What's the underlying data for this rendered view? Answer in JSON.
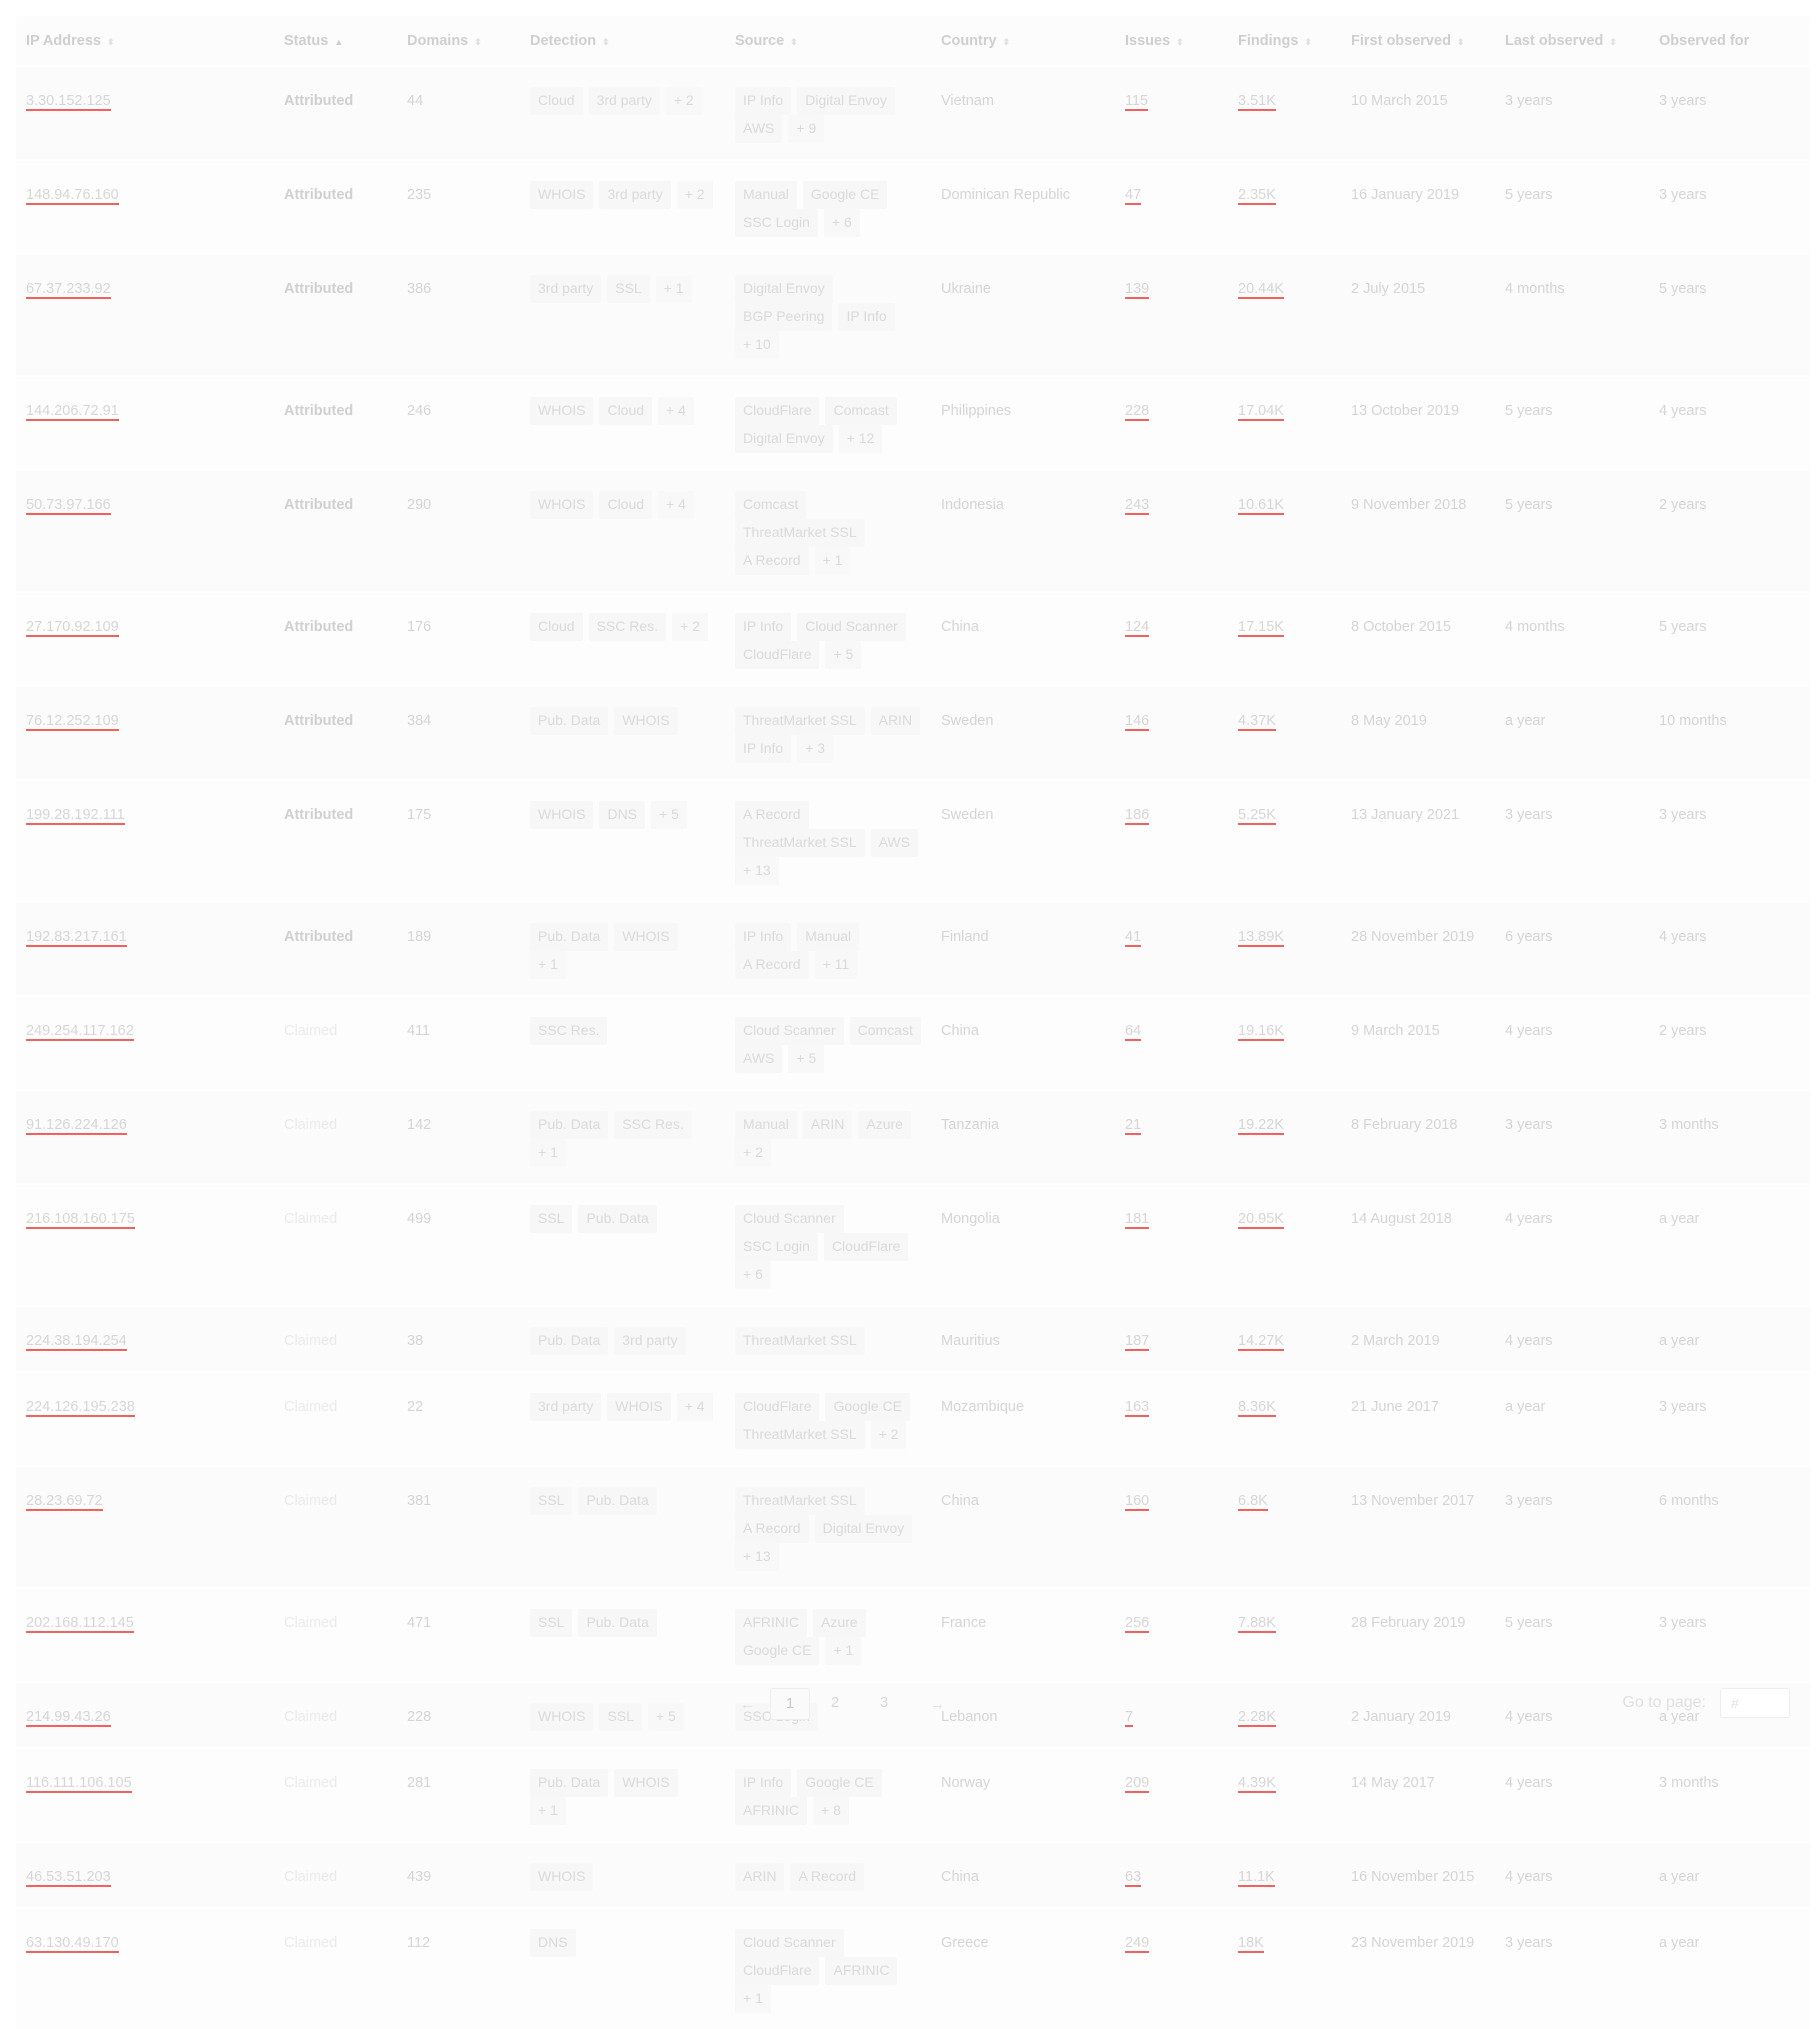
{
  "table": {
    "columns": [
      {
        "label": "IP Address",
        "sort": "⬍",
        "active": false
      },
      {
        "label": "Status",
        "sort": "▲",
        "active": true
      },
      {
        "label": "Domains",
        "sort": "⬍",
        "active": false
      },
      {
        "label": "Detection",
        "sort": "⬍",
        "active": false
      },
      {
        "label": "Source",
        "sort": "⬍",
        "active": false
      },
      {
        "label": "Country",
        "sort": "⬍",
        "active": false
      },
      {
        "label": "Issues",
        "sort": "⬍",
        "active": false
      },
      {
        "label": "Findings",
        "sort": "⬍",
        "active": false
      },
      {
        "label": "First observed",
        "sort": "⬍",
        "active": false
      },
      {
        "label": "Last observed",
        "sort": "⬍",
        "active": false
      },
      {
        "label": "Observed for",
        "sort": "",
        "active": false
      }
    ],
    "rows": [
      {
        "ip": "3.30.152.125",
        "status": "Attributed",
        "domains": "44",
        "detection": [
          "Cloud",
          "3rd party",
          "+ 2"
        ],
        "source": [
          "IP Info",
          "Digital Envoy",
          "AWS",
          "+ 9"
        ],
        "country": "Vietnam",
        "issues": "115",
        "findings": "3.51K",
        "first": "10 March 2015",
        "last": "3 years",
        "observed": "3 years"
      },
      {
        "ip": "148.94.76.160",
        "status": "Attributed",
        "domains": "235",
        "detection": [
          "WHOIS",
          "3rd party",
          "+ 2"
        ],
        "source": [
          "Manual",
          "Google CE",
          "SSC Login",
          "+ 6"
        ],
        "country": "Dominican Republic",
        "issues": "47",
        "findings": "2.35K",
        "first": "16 January 2019",
        "last": "5 years",
        "observed": "3 years"
      },
      {
        "ip": "67.37.233.92",
        "status": "Attributed",
        "domains": "386",
        "detection": [
          "3rd party",
          "SSL",
          "+ 1"
        ],
        "source": [
          "Digital Envoy",
          "BGP Peering",
          "IP Info",
          "+ 10"
        ],
        "country": "Ukraine",
        "issues": "139",
        "findings": "20.44K",
        "first": "2 July 2015",
        "last": "4 months",
        "observed": "5 years"
      },
      {
        "ip": "144.206.72.91",
        "status": "Attributed",
        "domains": "246",
        "detection": [
          "WHOIS",
          "Cloud",
          "+ 4"
        ],
        "source": [
          "CloudFlare",
          "Comcast",
          "Digital Envoy",
          "+ 12"
        ],
        "country": "Philippines",
        "issues": "228",
        "findings": "17.04K",
        "first": "13 October 2019",
        "last": "5 years",
        "observed": "4 years"
      },
      {
        "ip": "50.73.97.166",
        "status": "Attributed",
        "domains": "290",
        "detection": [
          "WHOIS",
          "Cloud",
          "+ 4"
        ],
        "source": [
          "Comcast",
          "ThreatMarket SSL",
          "A Record",
          "+ 1"
        ],
        "country": "Indonesia",
        "issues": "243",
        "findings": "10.61K",
        "first": "9 November 2018",
        "last": "5 years",
        "observed": "2 years"
      },
      {
        "ip": "27.170.92.109",
        "status": "Attributed",
        "domains": "176",
        "detection": [
          "Cloud",
          "SSC Res.",
          "+ 2"
        ],
        "source": [
          "IP Info",
          "Cloud Scanner",
          "CloudFlare",
          "+ 5"
        ],
        "country": "China",
        "issues": "124",
        "findings": "17.15K",
        "first": "8 October 2015",
        "last": "4 months",
        "observed": "5 years"
      },
      {
        "ip": "76.12.252.109",
        "status": "Attributed",
        "domains": "384",
        "detection": [
          "Pub. Data",
          "WHOIS"
        ],
        "source": [
          "ThreatMarket SSL",
          "ARIN",
          "IP Info",
          "+ 3"
        ],
        "country": "Sweden",
        "issues": "146",
        "findings": "4.37K",
        "first": "8 May 2019",
        "last": "a year",
        "observed": "10 months"
      },
      {
        "ip": "199.28.192.111",
        "status": "Attributed",
        "domains": "175",
        "detection": [
          "WHOIS",
          "DNS",
          "+ 5"
        ],
        "source": [
          "A Record",
          "ThreatMarket SSL",
          "AWS",
          "+ 13"
        ],
        "country": "Sweden",
        "issues": "186",
        "findings": "5.25K",
        "first": "13 January 2021",
        "last": "3 years",
        "observed": "3 years"
      },
      {
        "ip": "192.83.217.161",
        "status": "Attributed",
        "domains": "189",
        "detection": [
          "Pub. Data",
          "WHOIS",
          "+ 1"
        ],
        "source": [
          "IP Info",
          "Manual",
          "A Record",
          "+ 11"
        ],
        "country": "Finland",
        "issues": "41",
        "findings": "13.89K",
        "first": "28 November 2019",
        "last": "6 years",
        "observed": "4 years"
      },
      {
        "ip": "249.254.117.162",
        "status": "Claimed",
        "domains": "411",
        "detection": [
          "SSC Res."
        ],
        "source": [
          "Cloud Scanner",
          "Comcast",
          "AWS",
          "+ 5"
        ],
        "country": "China",
        "issues": "64",
        "findings": "19.16K",
        "first": "9 March 2015",
        "last": "4 years",
        "observed": "2 years"
      },
      {
        "ip": "91.126.224.126",
        "status": "Claimed",
        "domains": "142",
        "detection": [
          "Pub. Data",
          "SSC Res.",
          "+ 1"
        ],
        "source": [
          "Manual",
          "ARIN",
          "Azure",
          "+ 2"
        ],
        "country": "Tanzania",
        "issues": "21",
        "findings": "19.22K",
        "first": "8 February 2018",
        "last": "3 years",
        "observed": "3 months"
      },
      {
        "ip": "216.108.160.175",
        "status": "Claimed",
        "domains": "499",
        "detection": [
          "SSL",
          "Pub. Data"
        ],
        "source": [
          "Cloud Scanner",
          "SSC Login",
          "CloudFlare",
          "+ 6"
        ],
        "country": "Mongolia",
        "issues": "181",
        "findings": "20.95K",
        "first": "14 August 2018",
        "last": "4 years",
        "observed": "a year"
      },
      {
        "ip": "224.38.194.254",
        "status": "Claimed",
        "domains": "38",
        "detection": [
          "Pub. Data",
          "3rd party"
        ],
        "source": [
          "ThreatMarket SSL"
        ],
        "country": "Mauritius",
        "issues": "187",
        "findings": "14.27K",
        "first": "2 March 2019",
        "last": "4 years",
        "observed": "a year"
      },
      {
        "ip": "224.126.195.238",
        "status": "Claimed",
        "domains": "22",
        "detection": [
          "3rd party",
          "WHOIS",
          "+ 4"
        ],
        "source": [
          "CloudFlare",
          "Google CE",
          "ThreatMarket SSL",
          "+ 2"
        ],
        "country": "Mozambique",
        "issues": "163",
        "findings": "8.36K",
        "first": "21 June 2017",
        "last": "a year",
        "observed": "3 years"
      },
      {
        "ip": "28.23.69.72",
        "status": "Claimed",
        "domains": "381",
        "detection": [
          "SSL",
          "Pub. Data"
        ],
        "source": [
          "ThreatMarket SSL",
          "A Record",
          "Digital Envoy",
          "+ 13"
        ],
        "country": "China",
        "issues": "160",
        "findings": "6.8K",
        "first": "13 November 2017",
        "last": "3 years",
        "observed": "6 months"
      },
      {
        "ip": "202.168.112.145",
        "status": "Claimed",
        "domains": "471",
        "detection": [
          "SSL",
          "Pub. Data"
        ],
        "source": [
          "AFRINIC",
          "Azure",
          "Google CE",
          "+ 1"
        ],
        "country": "France",
        "issues": "256",
        "findings": "7.88K",
        "first": "28 February 2019",
        "last": "5 years",
        "observed": "3 years"
      },
      {
        "ip": "214.99.43.26",
        "status": "Claimed",
        "domains": "228",
        "detection": [
          "WHOIS",
          "SSL",
          "+ 5"
        ],
        "source": [
          "SSC Login"
        ],
        "country": "Lebanon",
        "issues": "7",
        "findings": "2.28K",
        "first": "2 January 2019",
        "last": "4 years",
        "observed": "a year"
      },
      {
        "ip": "116.111.106.105",
        "status": "Claimed",
        "domains": "281",
        "detection": [
          "Pub. Data",
          "WHOIS",
          "+ 1"
        ],
        "source": [
          "IP Info",
          "Google CE",
          "AFRINIC",
          "+ 8"
        ],
        "country": "Norway",
        "issues": "209",
        "findings": "4.39K",
        "first": "14 May 2017",
        "last": "4 years",
        "observed": "3 months"
      },
      {
        "ip": "46.53.51.203",
        "status": "Claimed",
        "domains": "439",
        "detection": [
          "WHOIS"
        ],
        "source": [
          "ARIN",
          "A Record"
        ],
        "country": "China",
        "issues": "63",
        "findings": "11.1K",
        "first": "16 November 2015",
        "last": "4 years",
        "observed": "a year"
      },
      {
        "ip": "63.130.49.170",
        "status": "Claimed",
        "domains": "112",
        "detection": [
          "DNS"
        ],
        "source": [
          "Cloud Scanner",
          "CloudFlare",
          "AFRINIC",
          "+ 1"
        ],
        "country": "Greece",
        "issues": "249",
        "findings": "18K",
        "first": "23 November 2019",
        "last": "3 years",
        "observed": "a year"
      }
    ]
  },
  "pagination": {
    "prev_icon": "←",
    "next_icon": "→",
    "pages": [
      "1",
      "2",
      "3"
    ],
    "current": "1",
    "goto_label": "Go to page:",
    "goto_placeholder": "#"
  },
  "colors": {
    "link_underline": "#f26060"
  }
}
